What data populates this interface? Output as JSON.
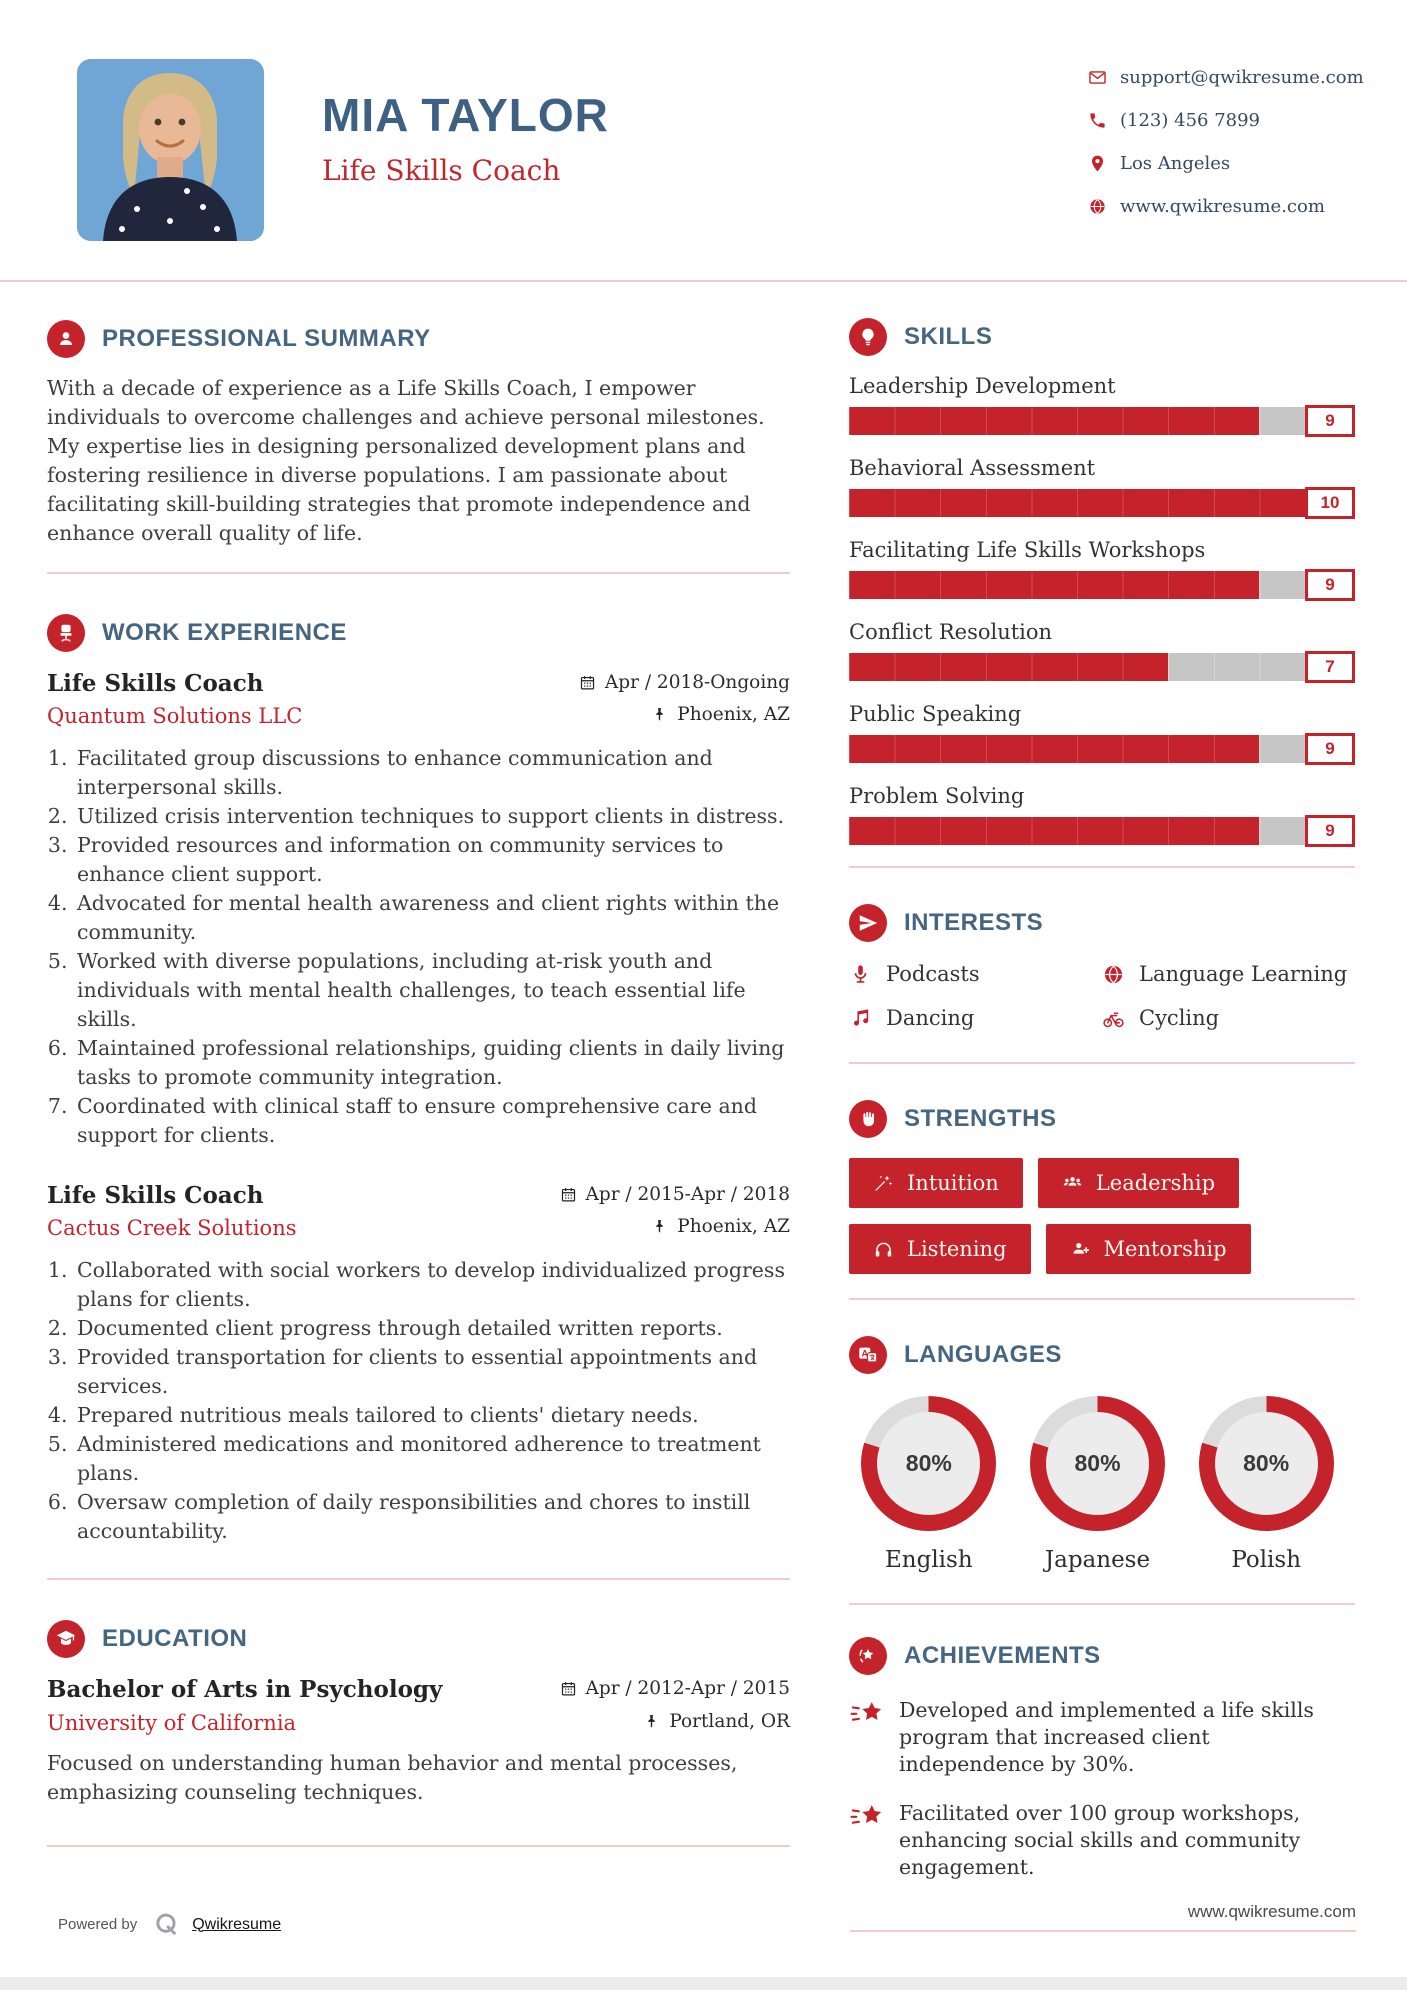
{
  "colors": {
    "accent_red": "#c5232b",
    "heading_blue": "#456581",
    "name_blue": "#3d6083",
    "bar_gray": "#c6c6c6",
    "divider_pink": "#f2cbd0"
  },
  "header": {
    "name": "MIA TAYLOR",
    "title": "Life Skills Coach",
    "contact": [
      {
        "icon": "email-icon",
        "text": "support@qwikresume.com"
      },
      {
        "icon": "phone-icon",
        "text": "(123) 456 7899"
      },
      {
        "icon": "location-icon",
        "text": "Los Angeles"
      },
      {
        "icon": "globe-icon",
        "text": "www.qwikresume.com"
      }
    ]
  },
  "summary": {
    "heading": "PROFESSIONAL SUMMARY",
    "text": "With a decade of experience as a Life Skills Coach, I empower individuals to overcome challenges and achieve personal milestones. My expertise lies in designing personalized development plans and fostering resilience in diverse populations. I am passionate about facilitating skill-building strategies that promote independence and enhance overall quality of life."
  },
  "work": {
    "heading": "WORK EXPERIENCE",
    "jobs": [
      {
        "title": "Life Skills Coach",
        "company": "Quantum Solutions LLC",
        "dates": "Apr / 2018-Ongoing",
        "location": "Phoenix, AZ",
        "bullets": [
          "Facilitated group discussions to enhance communication and interpersonal skills.",
          "Utilized crisis intervention techniques to support clients in distress.",
          "Provided resources and information on community services to enhance client support.",
          "Advocated for mental health awareness and client rights within the community.",
          "Worked with diverse populations, including at-risk youth and individuals with mental health challenges, to teach essential life skills.",
          "Maintained professional relationships, guiding clients in daily living tasks to promote community integration.",
          "Coordinated with clinical staff to ensure comprehensive care and support for clients."
        ]
      },
      {
        "title": "Life Skills Coach",
        "company": "Cactus Creek Solutions",
        "dates": "Apr / 2015-Apr / 2018",
        "location": "Phoenix, AZ",
        "bullets": [
          "Collaborated with social workers to develop individualized progress plans for clients.",
          "Documented client progress through detailed written reports.",
          "Provided transportation for clients to essential appointments and services.",
          "Prepared nutritious meals tailored to clients' dietary needs.",
          "Administered medications and monitored adherence to treatment plans.",
          "Oversaw completion of daily responsibilities and chores to instill accountability."
        ]
      }
    ]
  },
  "education": {
    "heading": "EDUCATION",
    "degree": "Bachelor of Arts in Psychology",
    "school": "University of California",
    "dates": "Apr / 2012-Apr / 2015",
    "location": "Portland, OR",
    "description": "Focused on understanding human behavior and mental processes, emphasizing counseling techniques."
  },
  "skills": {
    "heading": "SKILLS",
    "max": 10,
    "items": [
      {
        "label": "Leadership Development",
        "value": 9
      },
      {
        "label": "Behavioral Assessment",
        "value": 10
      },
      {
        "label": "Facilitating Life Skills Workshops",
        "value": 9
      },
      {
        "label": "Conflict Resolution",
        "value": 7
      },
      {
        "label": "Public Speaking",
        "value": 9
      },
      {
        "label": "Problem Solving",
        "value": 9
      }
    ]
  },
  "interests": {
    "heading": "INTERESTS",
    "items": [
      {
        "icon": "microphone-icon",
        "label": "Podcasts"
      },
      {
        "icon": "globe-icon",
        "label": "Language Learning"
      },
      {
        "icon": "music-note-icon",
        "label": "Dancing"
      },
      {
        "icon": "bicycle-icon",
        "label": "Cycling"
      }
    ]
  },
  "strengths": {
    "heading": "STRENGTHS",
    "items": [
      {
        "icon": "magic-wand-icon",
        "label": "Intuition"
      },
      {
        "icon": "people-icon",
        "label": "Leadership"
      },
      {
        "icon": "headphones-icon",
        "label": "Listening"
      },
      {
        "icon": "person-plus-icon",
        "label": "Mentorship"
      }
    ]
  },
  "languages": {
    "heading": "LANGUAGES",
    "items": [
      {
        "label": "English",
        "percent": 80
      },
      {
        "label": "Japanese",
        "percent": 80
      },
      {
        "label": "Polish",
        "percent": 80
      }
    ]
  },
  "achievements": {
    "heading": "ACHIEVEMENTS",
    "items": [
      "Developed and implemented a life skills program that increased client independence by 30%.",
      "Facilitated over 100 group workshops, enhancing social skills and community engagement."
    ]
  },
  "footer": {
    "powered_by": "Powered by",
    "brand": "Qwikresume",
    "website": "www.qwikresume.com"
  }
}
